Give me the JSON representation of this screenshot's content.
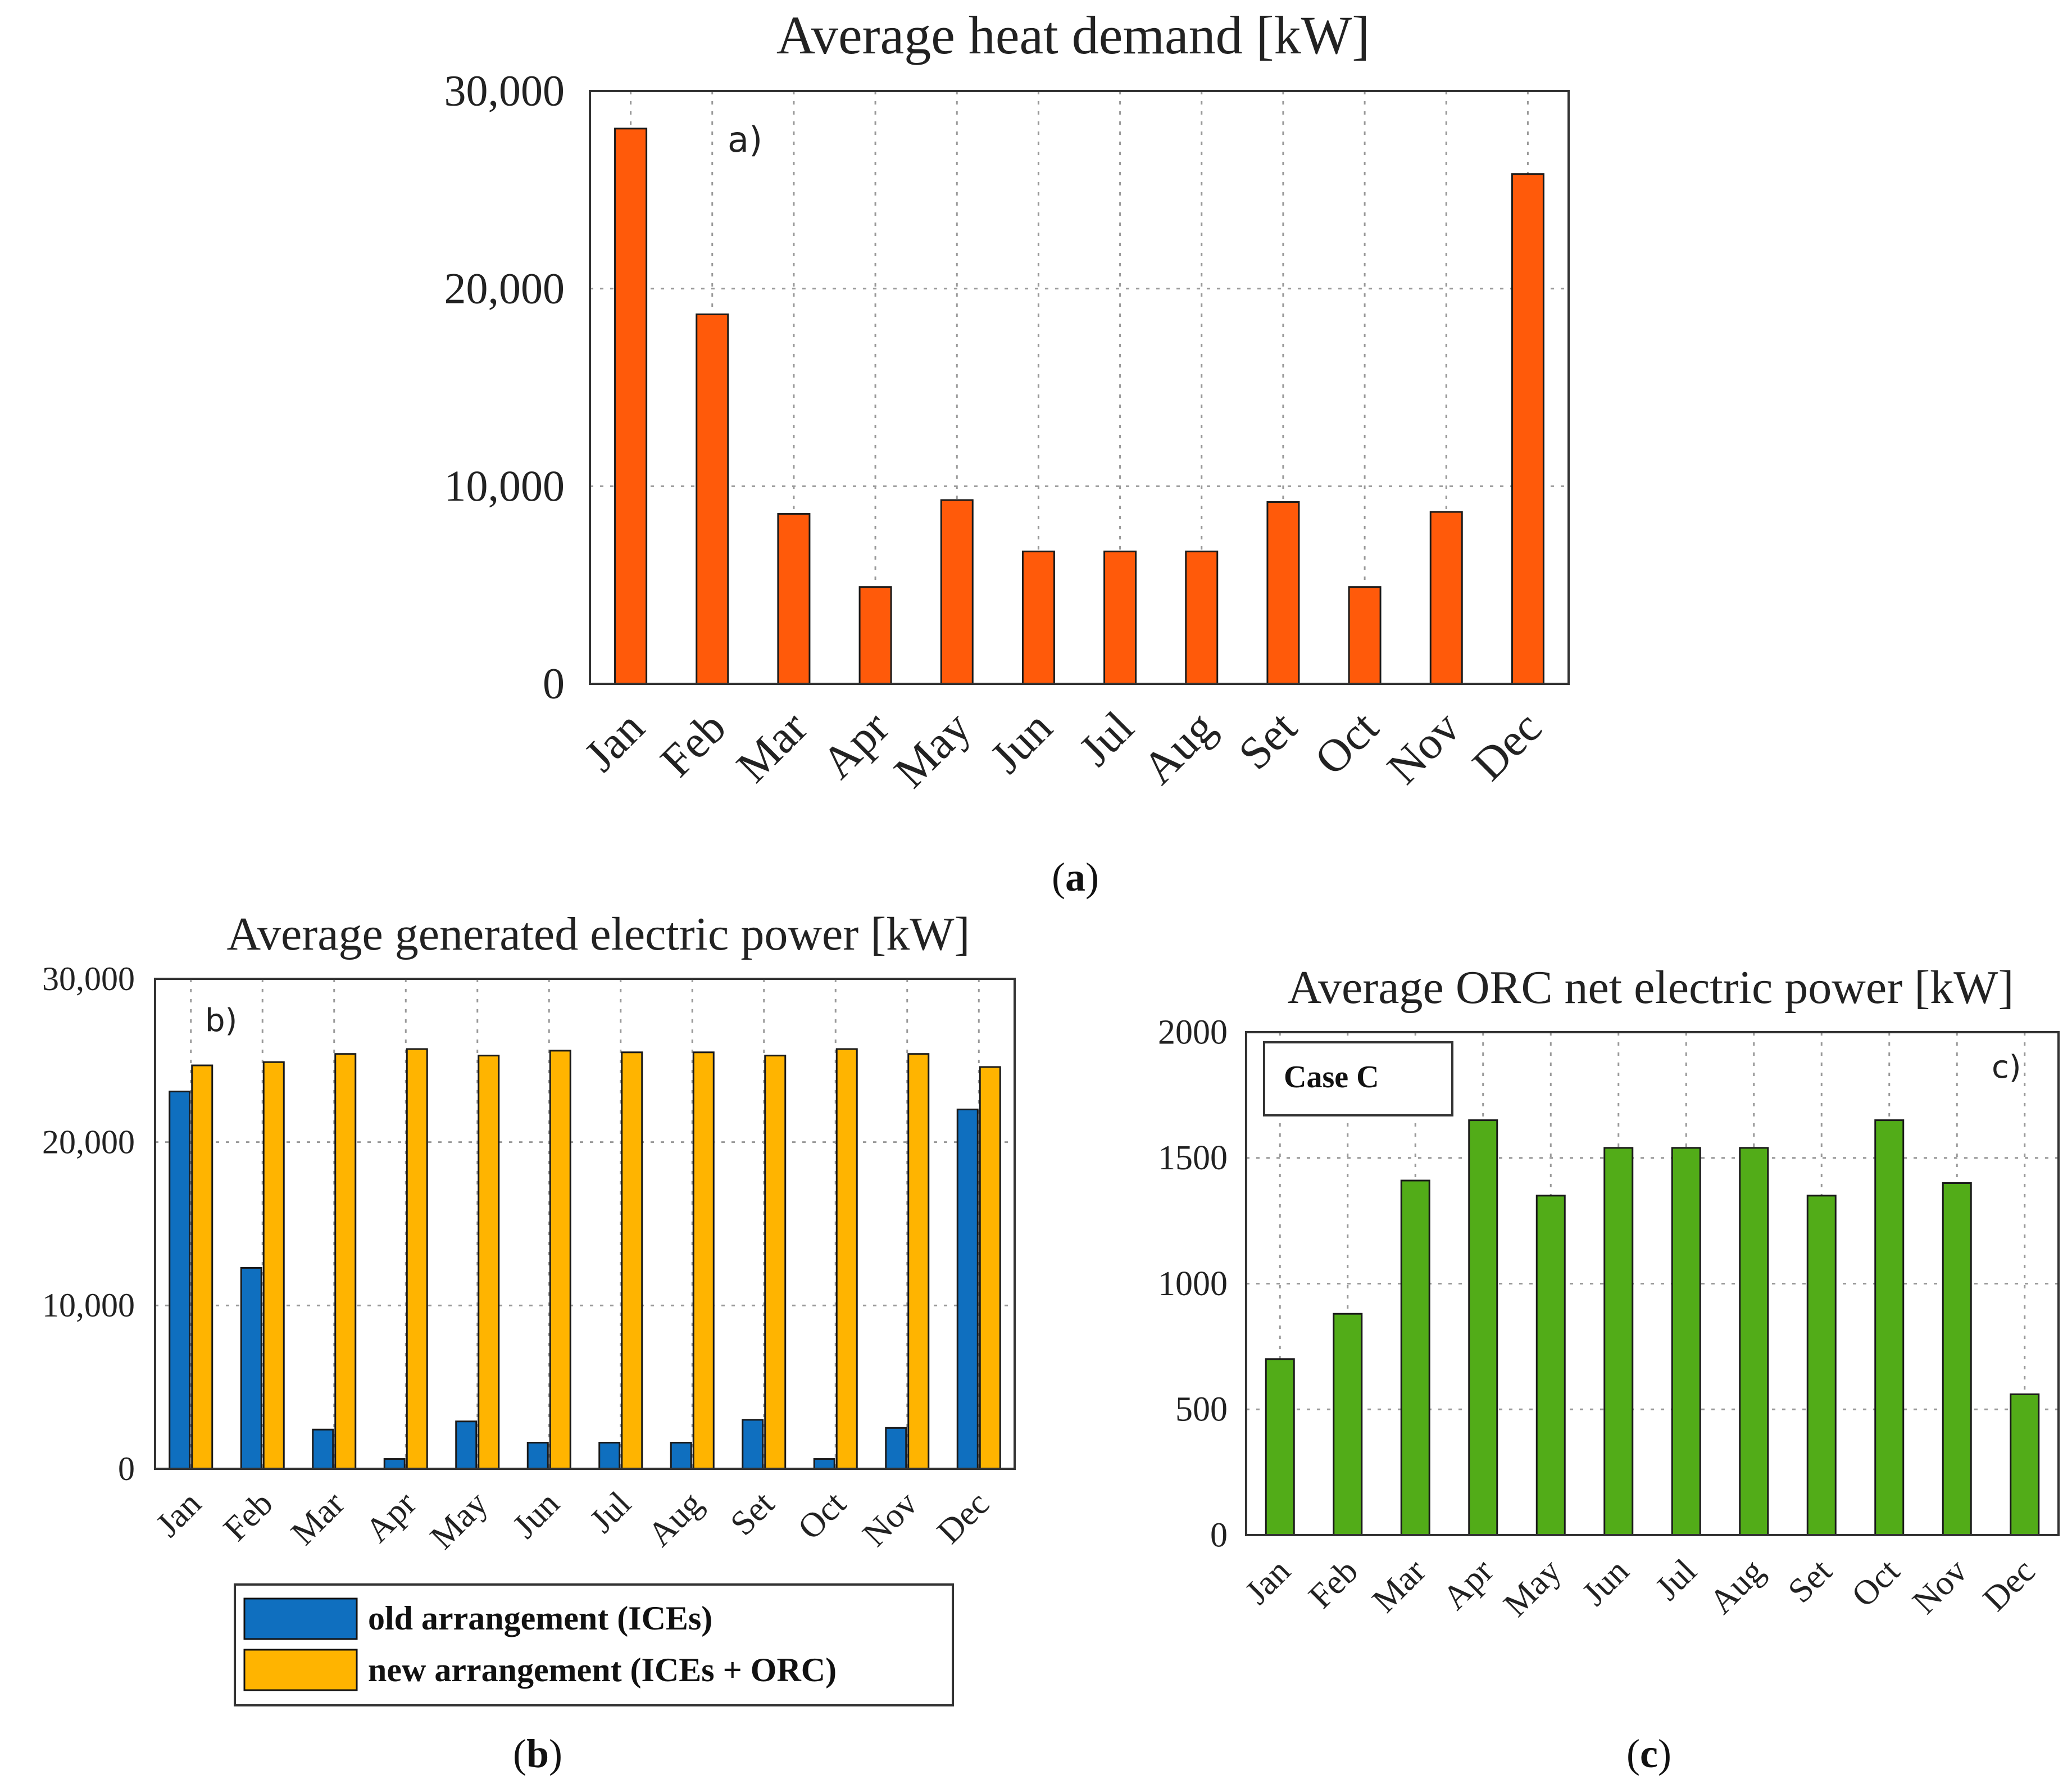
{
  "chart_data": [
    {
      "type": "bar",
      "panel": "a",
      "title": "Average heat demand [kW]",
      "annotation": "a)",
      "caption": "a",
      "categories": [
        "Jan",
        "Feb",
        "Mar",
        "Apr",
        "May",
        "Jun",
        "Jul",
        "Aug",
        "Set",
        "Oct",
        "Nov",
        "Dec"
      ],
      "values": [
        28100,
        18700,
        8600,
        4900,
        9300,
        6700,
        6700,
        6700,
        9200,
        4900,
        8700,
        25800
      ],
      "ylim": [
        0,
        30000
      ],
      "yticks": [
        "0",
        "10,000",
        "20,000",
        "30,000"
      ],
      "color": "#ff5a0a",
      "grid": true
    },
    {
      "type": "bar",
      "panel": "b",
      "title": "Average generated electric power [kW]",
      "annotation": "b)",
      "caption": "b",
      "categories": [
        "Jan",
        "Feb",
        "Mar",
        "Apr",
        "May",
        "Jun",
        "Jul",
        "Aug",
        "Set",
        "Oct",
        "Nov",
        "Dec"
      ],
      "series": [
        {
          "name": "old arrangement (ICEs)",
          "color": "#0f6fbf",
          "values": [
            23100,
            12300,
            2400,
            600,
            2900,
            1600,
            1600,
            1600,
            3000,
            600,
            2500,
            22000
          ]
        },
        {
          "name": "new arrangement (ICEs + ORC)",
          "color": "#ffb400",
          "values": [
            24700,
            24900,
            25400,
            25700,
            25300,
            25600,
            25500,
            25500,
            25300,
            25700,
            25400,
            24600
          ]
        }
      ],
      "ylim": [
        0,
        30000
      ],
      "yticks": [
        "0",
        "10,000",
        "20,000",
        "30,000"
      ],
      "legend": "bottom",
      "grid": true
    },
    {
      "type": "bar",
      "panel": "c",
      "title": "Average ORC net electric power [kW]",
      "annotation": "c)",
      "case_label": "Case C",
      "caption": "c",
      "categories": [
        "Jan",
        "Feb",
        "Mar",
        "Apr",
        "May",
        "Jun",
        "Jul",
        "Aug",
        "Set",
        "Oct",
        "Nov",
        "Dec"
      ],
      "values": [
        700,
        880,
        1410,
        1650,
        1350,
        1540,
        1540,
        1540,
        1350,
        1650,
        1400,
        560
      ],
      "ylim": [
        0,
        2000
      ],
      "yticks": [
        "0",
        "500",
        "1000",
        "1500",
        "2000"
      ],
      "color": "#52ac18",
      "grid": true
    }
  ]
}
